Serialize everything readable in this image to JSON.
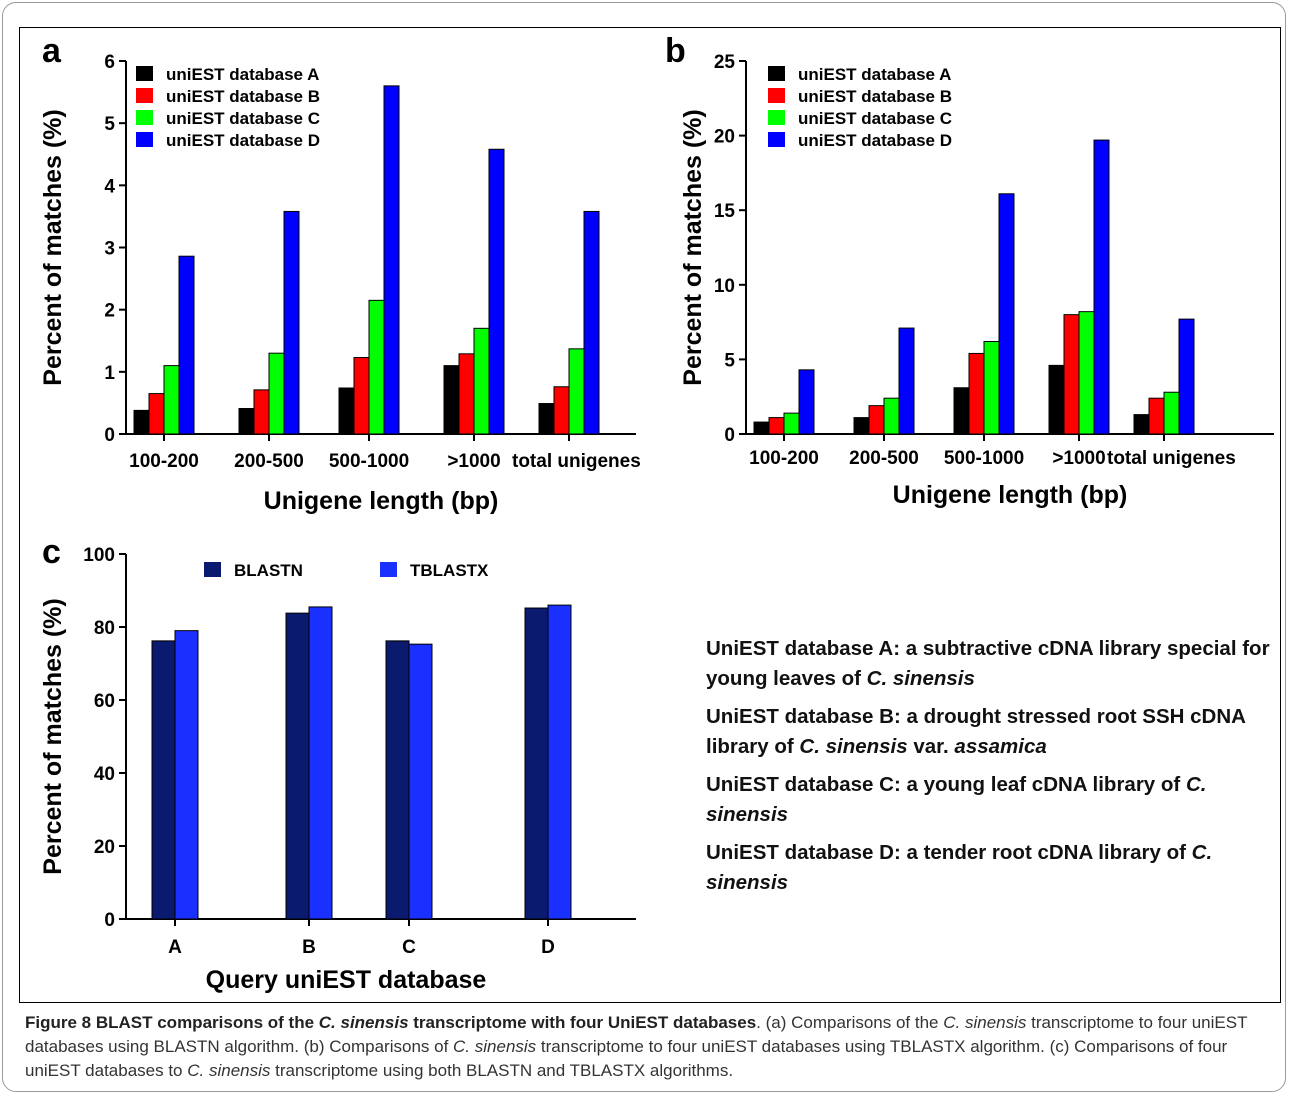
{
  "chart_data": [
    {
      "panel": "a",
      "type": "bar",
      "categories": [
        "100-200",
        "200-500",
        "500-1000",
        ">1000",
        "total unigenes"
      ],
      "series": [
        {
          "name": "uniEST database A",
          "color": "#000000",
          "values": [
            0.38,
            0.41,
            0.74,
            1.1,
            0.49
          ]
        },
        {
          "name": "uniEST database B",
          "color": "#ff0000",
          "values": [
            0.65,
            0.71,
            1.23,
            1.29,
            0.76
          ]
        },
        {
          "name": "uniEST database C",
          "color": "#00ff00",
          "values": [
            1.1,
            1.3,
            2.15,
            1.7,
            1.37
          ]
        },
        {
          "name": "uniEST database D",
          "color": "#0000ff",
          "values": [
            2.86,
            3.58,
            5.6,
            4.58,
            3.58
          ]
        }
      ],
      "xlabel": "Unigene length (bp)",
      "ylabel": "Percent of matches (%)",
      "ylim": [
        0,
        6
      ],
      "yticks": [
        "0",
        "1",
        "2",
        "3",
        "4",
        "5",
        "6"
      ],
      "grid": false,
      "legend": "top-left"
    },
    {
      "panel": "b",
      "type": "bar",
      "categories": [
        "100-200",
        "200-500",
        "500-1000",
        ">1000",
        "total unigenes"
      ],
      "series": [
        {
          "name": "uniEST database A",
          "color": "#000000",
          "values": [
            0.8,
            1.1,
            3.1,
            4.6,
            1.3
          ]
        },
        {
          "name": "uniEST database B",
          "color": "#ff0000",
          "values": [
            1.1,
            1.9,
            5.4,
            8.0,
            2.4
          ]
        },
        {
          "name": "uniEST database C",
          "color": "#00ff00",
          "values": [
            1.4,
            2.4,
            6.2,
            8.2,
            2.8
          ]
        },
        {
          "name": "uniEST database D",
          "color": "#0000ff",
          "values": [
            4.3,
            7.1,
            16.1,
            19.7,
            7.7
          ]
        }
      ],
      "xlabel": "Unigene length (bp)",
      "ylabel": "Percent of matches (%)",
      "ylim": [
        0,
        25
      ],
      "yticks": [
        "0",
        "5",
        "10",
        "15",
        "20",
        "25"
      ],
      "grid": false,
      "legend": "top-left"
    },
    {
      "panel": "c",
      "type": "bar",
      "categories": [
        "A",
        "B",
        "C",
        "D"
      ],
      "series": [
        {
          "name": "BLASTN",
          "color": "#0a1a6e",
          "values": [
            76.2,
            83.8,
            76.2,
            85.2
          ]
        },
        {
          "name": "TBLASTX",
          "color": "#1a30ff",
          "values": [
            79.0,
            85.5,
            75.3,
            86.0
          ]
        }
      ],
      "xlabel": "Query uniEST database",
      "ylabel": "Percent of matches (%)",
      "ylim": [
        0,
        100
      ],
      "yticks": [
        "0",
        "20",
        "40",
        "60",
        "80",
        "100"
      ],
      "grid": false,
      "legend": "top-center"
    }
  ],
  "definitions": [
    {
      "lead": "UniEST database A: a subtractive cDNA library special for young leaves of ",
      "species": "C. sinensis",
      "tail": ""
    },
    {
      "lead": "UniEST database B: a drought stressed root SSH cDNA library of ",
      "species": "C. sinensis",
      "tail": " var. ",
      "variety": "assamica"
    },
    {
      "lead": "UniEST database C: a young leaf cDNA library of ",
      "species": "C. sinensis",
      "tail": ""
    },
    {
      "lead": "UniEST database D: a tender root cDNA library of ",
      "species": "C. sinensis",
      "tail": ""
    }
  ],
  "caption": {
    "title_part1": "Figure 8 BLAST comparisons of the ",
    "title_species": "C. sinensis",
    "title_part2": " transcriptome with four UniEST databases",
    "body": [
      {
        "text": ". (a) Comparisons of the ",
        "italic": false
      },
      {
        "text": "C. sinensis",
        "italic": true
      },
      {
        "text": " transcriptome to four uniEST databases using BLASTN algorithm. (b) Comparisons of ",
        "italic": false
      },
      {
        "text": "C. sinensis",
        "italic": true
      },
      {
        "text": " transcriptome to four uniEST databases using TBLASTX algorithm. (c) Comparisons of four uniEST databases to ",
        "italic": false
      },
      {
        "text": "C. sinensis",
        "italic": true
      },
      {
        "text": " transcriptome using both BLASTN and TBLASTX algorithms.",
        "italic": false
      }
    ]
  }
}
